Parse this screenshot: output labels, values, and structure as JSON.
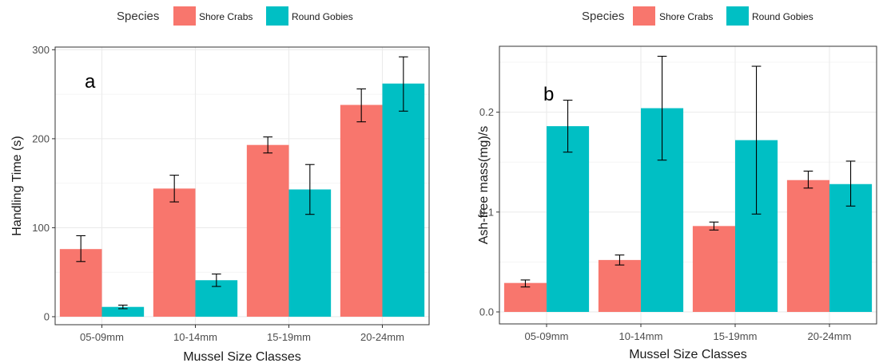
{
  "legend": {
    "title": "Species",
    "entries": [
      {
        "label": "Shore Crabs",
        "color": "#F8766D"
      },
      {
        "label": "Round Gobies",
        "color": "#00BFC4"
      }
    ]
  },
  "chart_data": [
    {
      "type": "bar",
      "panel_label": "a",
      "xlabel": "Mussel Size Classes",
      "ylabel": "Handling Time (s)",
      "categories": [
        "05-09mm",
        "10-14mm",
        "15-19mm",
        "20-24mm"
      ],
      "series": [
        {
          "name": "Shore Crabs",
          "color": "#F8766D",
          "values": [
            76,
            144,
            193,
            238
          ],
          "error_low": [
            62,
            129,
            184,
            219
          ],
          "error_high": [
            91,
            159,
            202,
            256
          ]
        },
        {
          "name": "Round Gobies",
          "color": "#00BFC4",
          "values": [
            11,
            41,
            143,
            262
          ],
          "error_low": [
            9,
            34,
            115,
            231
          ],
          "error_high": [
            13,
            48,
            171,
            292
          ]
        }
      ],
      "yticks": [
        0,
        100,
        200,
        300
      ],
      "ylim": [
        -9,
        303
      ],
      "grid": true,
      "legend_position": "top"
    },
    {
      "type": "bar",
      "panel_label": "b",
      "xlabel": "Mussel Size Classes",
      "ylabel": "Ash-free mass(mg)/s",
      "categories": [
        "05-09mm",
        "10-14mm",
        "15-19mm",
        "20-24mm"
      ],
      "series": [
        {
          "name": "Shore Crabs",
          "color": "#F8766D",
          "values": [
            0.029,
            0.052,
            0.086,
            0.132
          ],
          "error_low": [
            0.025,
            0.047,
            0.082,
            0.124
          ],
          "error_high": [
            0.032,
            0.057,
            0.09,
            0.141
          ]
        },
        {
          "name": "Round Gobies",
          "color": "#00BFC4",
          "values": [
            0.186,
            0.204,
            0.172,
            0.128
          ],
          "error_low": [
            0.16,
            0.152,
            0.098,
            0.106
          ],
          "error_high": [
            0.212,
            0.256,
            0.246,
            0.151
          ]
        }
      ],
      "yticks": [
        0.0,
        0.1,
        0.2
      ],
      "ytick_labels": [
        "0.0",
        "0.1",
        "0.2"
      ],
      "ylim": [
        -0.012,
        0.266
      ],
      "grid": true,
      "legend_position": "top"
    }
  ]
}
